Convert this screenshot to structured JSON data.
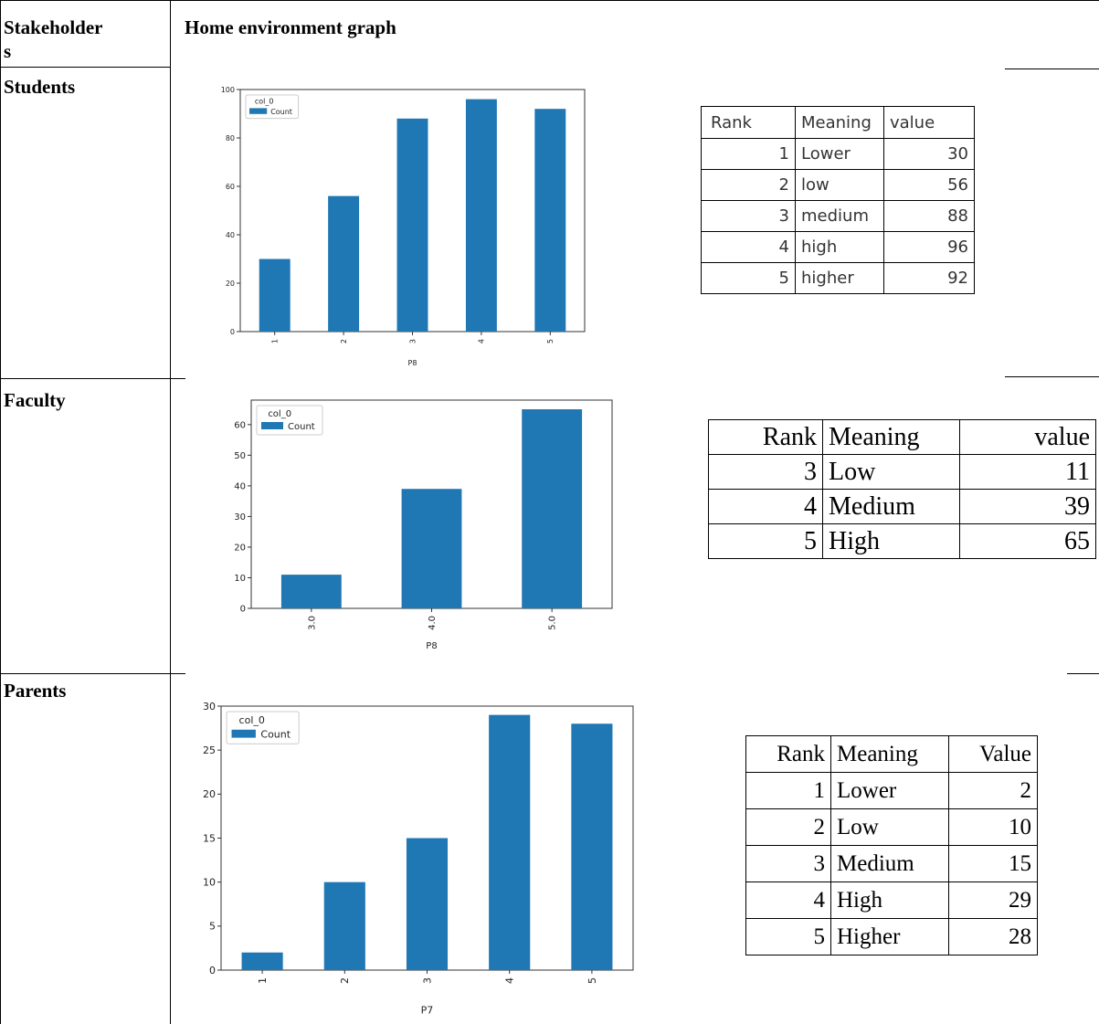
{
  "header": {
    "stakeholders_label_1": "Stakeholder",
    "stakeholders_label_2": "s",
    "graph_label": "Home environment graph"
  },
  "rows": [
    {
      "stakeholder": "Students",
      "table": {
        "headers": [
          "Rank",
          "Meaning",
          "value"
        ],
        "rows": [
          [
            "1",
            "Lower",
            "30"
          ],
          [
            "2",
            "low",
            "56"
          ],
          [
            "3",
            "medium",
            "88"
          ],
          [
            "4",
            "high",
            "96"
          ],
          [
            "5",
            "higher",
            "92"
          ]
        ]
      }
    },
    {
      "stakeholder": "Faculty",
      "table": {
        "headers": [
          "Rank",
          "Meaning",
          "value"
        ],
        "rows": [
          [
            "3",
            "Low",
            "11"
          ],
          [
            "4",
            "Medium",
            "39"
          ],
          [
            "5",
            "High",
            "65"
          ]
        ]
      }
    },
    {
      "stakeholder": "Parents",
      "table": {
        "headers": [
          "Rank",
          "Meaning",
          "Value"
        ],
        "rows": [
          [
            "1",
            "Lower",
            "2"
          ],
          [
            "2",
            "Low",
            "10"
          ],
          [
            "3",
            "Medium",
            "15"
          ],
          [
            "4",
            "High",
            "29"
          ],
          [
            "5",
            "Higher",
            "28"
          ]
        ]
      }
    }
  ],
  "colors": {
    "bar": "#1f77b4"
  },
  "chart_data": [
    {
      "type": "bar",
      "categories": [
        "1",
        "2",
        "3",
        "4",
        "5"
      ],
      "series": [
        {
          "name": "Count",
          "values": [
            30,
            56,
            88,
            96,
            92
          ]
        }
      ],
      "legend_title": "col_0",
      "xlabel": "P8",
      "ylabel": "",
      "ylim": [
        0,
        100
      ],
      "yticks": [
        0,
        20,
        40,
        60,
        80,
        100
      ],
      "grid": false,
      "legend": "top-left"
    },
    {
      "type": "bar",
      "categories": [
        "3.0",
        "4.0",
        "5.0"
      ],
      "series": [
        {
          "name": "Count",
          "values": [
            11,
            39,
            65
          ]
        }
      ],
      "legend_title": "col_0",
      "xlabel": "P8",
      "ylabel": "",
      "ylim": [
        0,
        68
      ],
      "yticks": [
        0,
        10,
        20,
        30,
        40,
        50,
        60
      ],
      "grid": false,
      "legend": "top-left"
    },
    {
      "type": "bar",
      "categories": [
        "1",
        "2",
        "3",
        "4",
        "5"
      ],
      "series": [
        {
          "name": "Count",
          "values": [
            2,
            10,
            15,
            29,
            28
          ]
        }
      ],
      "legend_title": "col_0",
      "xlabel": "P7",
      "ylabel": "",
      "ylim": [
        0,
        30
      ],
      "yticks": [
        0,
        5,
        10,
        15,
        20,
        25,
        30
      ],
      "grid": false,
      "legend": "top-left"
    }
  ]
}
